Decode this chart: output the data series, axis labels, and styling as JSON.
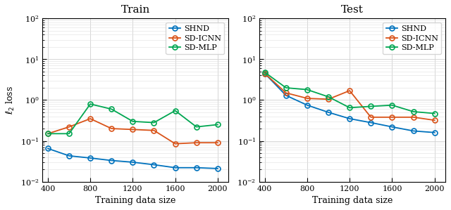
{
  "x": [
    400,
    600,
    800,
    1000,
    1200,
    1400,
    1600,
    1800,
    2000
  ],
  "train": {
    "SHND": [
      0.065,
      0.043,
      0.038,
      0.033,
      0.03,
      0.026,
      0.022,
      0.022,
      0.021
    ],
    "SD-ICNN": [
      0.15,
      0.22,
      0.35,
      0.2,
      0.19,
      0.18,
      0.085,
      0.09,
      0.09
    ],
    "SD-MLP": [
      0.15,
      0.15,
      0.8,
      0.6,
      0.3,
      0.28,
      0.55,
      0.22,
      0.25
    ]
  },
  "test": {
    "SHND": [
      4.5,
      1.3,
      0.75,
      0.5,
      0.35,
      0.28,
      0.22,
      0.175,
      0.16
    ],
    "SD-ICNN": [
      4.5,
      1.5,
      1.1,
      1.05,
      1.7,
      0.38,
      0.38,
      0.38,
      0.32
    ],
    "SD-MLP": [
      4.8,
      2.0,
      1.8,
      1.2,
      0.65,
      0.7,
      0.75,
      0.52,
      0.47
    ]
  },
  "colors": {
    "SHND": "#0072BD",
    "SD-ICNN": "#D95319",
    "SD-MLP": "#00A651"
  },
  "ylim": [
    0.01,
    100
  ],
  "xlim": [
    350,
    2100
  ],
  "xticks": [
    400,
    800,
    1200,
    1600,
    2000
  ],
  "xlabel": "Training data size",
  "ylabel": "$\\ell_2$ loss",
  "title_train": "Train",
  "title_test": "Test",
  "legend_labels": [
    "SHND",
    "SD-ICNN",
    "SD-MLP"
  ]
}
